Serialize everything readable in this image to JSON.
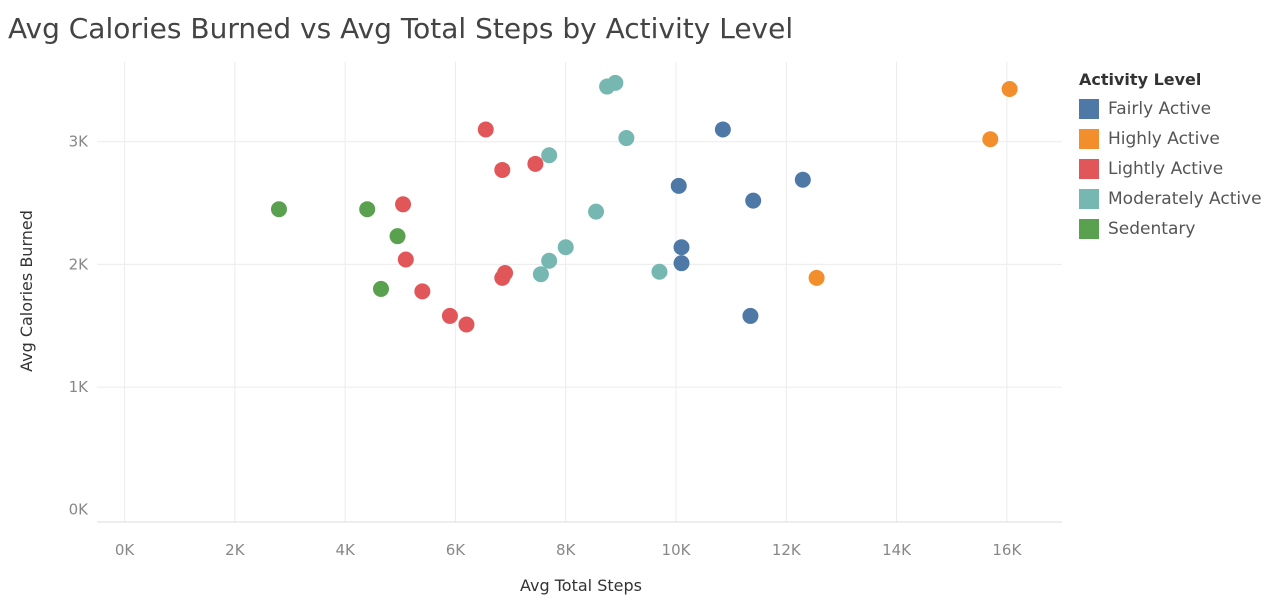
{
  "chart_data": {
    "type": "scatter",
    "title": "Avg Calories Burned vs Avg Total Steps by Activity Level",
    "xlabel": "Avg Total Steps",
    "ylabel": "Avg Calories Burned",
    "xlim": [
      -500,
      17000
    ],
    "ylim": [
      -100,
      3650
    ],
    "x_ticks": [
      0,
      2000,
      4000,
      6000,
      8000,
      10000,
      12000,
      14000,
      16000
    ],
    "x_tick_labels": [
      "0K",
      "2K",
      "4K",
      "6K",
      "8K",
      "10K",
      "12K",
      "14K",
      "16K"
    ],
    "y_ticks": [
      0,
      1000,
      2000,
      3000
    ],
    "y_tick_labels": [
      "0K",
      "1K",
      "2K",
      "3K"
    ],
    "grid": true,
    "legend_title": "Activity Level",
    "legend_position": "right",
    "series": [
      {
        "name": "Fairly Active",
        "color": "#4e79a7",
        "points": [
          [
            10850,
            3100
          ],
          [
            10050,
            2640
          ],
          [
            12300,
            2690
          ],
          [
            11400,
            2520
          ],
          [
            10100,
            2140
          ],
          [
            10100,
            2010
          ],
          [
            11350,
            1580
          ]
        ]
      },
      {
        "name": "Highly Active",
        "color": "#f28e2b",
        "points": [
          [
            16050,
            3430
          ],
          [
            15700,
            3020
          ],
          [
            12550,
            1890
          ]
        ]
      },
      {
        "name": "Lightly Active",
        "color": "#e15759",
        "points": [
          [
            6550,
            3100
          ],
          [
            6850,
            2770
          ],
          [
            7450,
            2820
          ],
          [
            5050,
            2490
          ],
          [
            5100,
            2040
          ],
          [
            6900,
            1930
          ],
          [
            6850,
            1890
          ],
          [
            5400,
            1780
          ],
          [
            5900,
            1580
          ],
          [
            6200,
            1510
          ]
        ]
      },
      {
        "name": "Moderately Active",
        "color": "#76b7b2",
        "points": [
          [
            8900,
            3480
          ],
          [
            8750,
            3450
          ],
          [
            9100,
            3030
          ],
          [
            7700,
            2890
          ],
          [
            8550,
            2430
          ],
          [
            8000,
            2140
          ],
          [
            7700,
            2030
          ],
          [
            7550,
            1920
          ],
          [
            9700,
            1940
          ]
        ]
      },
      {
        "name": "Sedentary",
        "color": "#59a14f",
        "points": [
          [
            2800,
            2450
          ],
          [
            4400,
            2450
          ],
          [
            4950,
            2230
          ],
          [
            4650,
            1800
          ]
        ]
      }
    ]
  }
}
